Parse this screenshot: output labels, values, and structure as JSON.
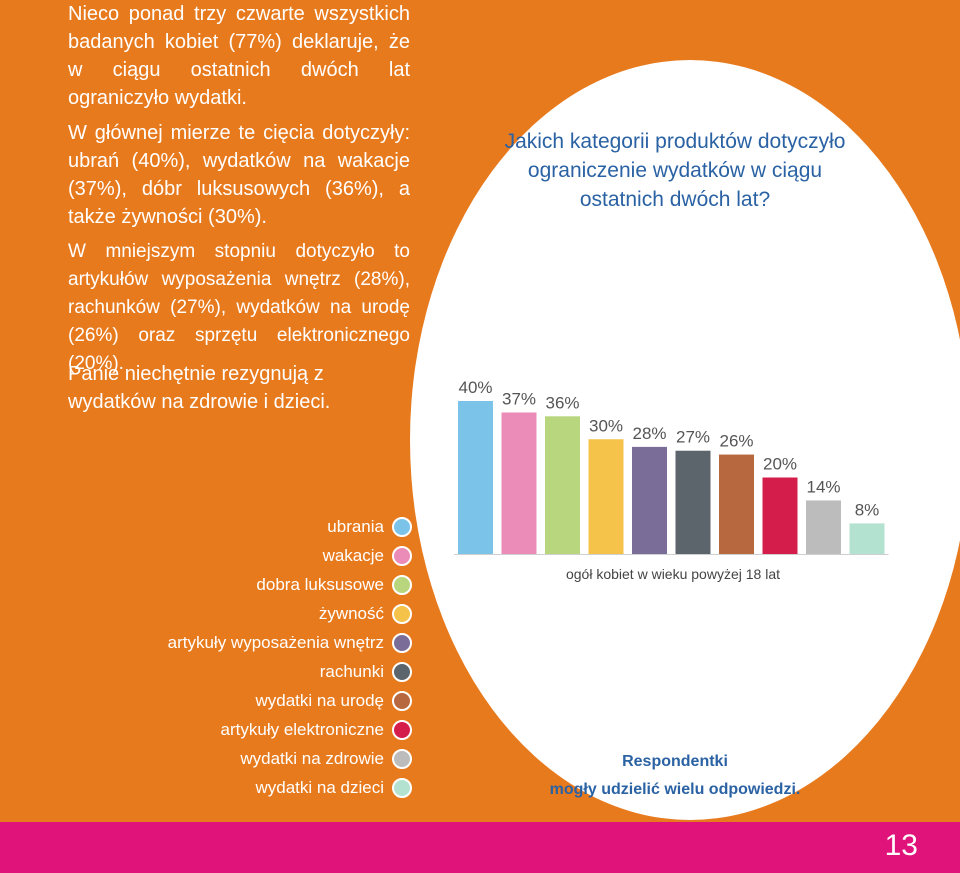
{
  "text": {
    "p1": "Nieco ponad trzy czwarte wszystkich badanych kobiet (77%) deklaruje, że w ciągu ostatnich dwóch lat ograniczyło wydatki.",
    "p2": "W głównej mierze te cięcia dotyczyły: ubrań (40%), wydatków na wakacje (37%), dóbr luksusowych (36%), a także żywności (30%).",
    "p3": "W mniejszym stopniu dotyczyło to artykułów wyposażenia wnętrz (28%), rachunków (27%), wydatków na urodę (26%) oraz sprzętu elektronicznego (20%).",
    "p4": "Panie niechętnie rezygnują z wydatków na zdrowie i dzieci."
  },
  "note": {
    "line1": "Respondentki",
    "line2": "mogły udzielić wielu odpowiedzi."
  },
  "page_number": "13",
  "chart_data": {
    "type": "bar",
    "title": "Jakich kategorii produktów dotyczyło ograniczenie wydatków w ciągu ostatnich dwóch lat?",
    "xlabel": "ogół kobiet w wieku powyżej 18 lat",
    "ylabel": "",
    "ylim": [
      0,
      40
    ],
    "categories": [
      "ubrania",
      "wakacje",
      "dobra luksusowe",
      "żywność",
      "artykuły wyposażenia wnętrz",
      "rachunki",
      "wydatki na urodę",
      "artykuły elektroniczne",
      "wydatki na zdrowie",
      "wydatki na dzieci"
    ],
    "values": [
      40,
      37,
      36,
      30,
      28,
      27,
      26,
      20,
      14,
      8
    ],
    "value_labels": [
      "40%",
      "37%",
      "36%",
      "30%",
      "28%",
      "27%",
      "26%",
      "20%",
      "14%",
      "8%"
    ],
    "colors": [
      "#7cc3ea",
      "#ea8cb7",
      "#b8d67e",
      "#f5c24a",
      "#7a6e98",
      "#5c646c",
      "#b8683e",
      "#d51d4c",
      "#bcbcbc",
      "#b4e2d0"
    ],
    "legend": "left"
  }
}
